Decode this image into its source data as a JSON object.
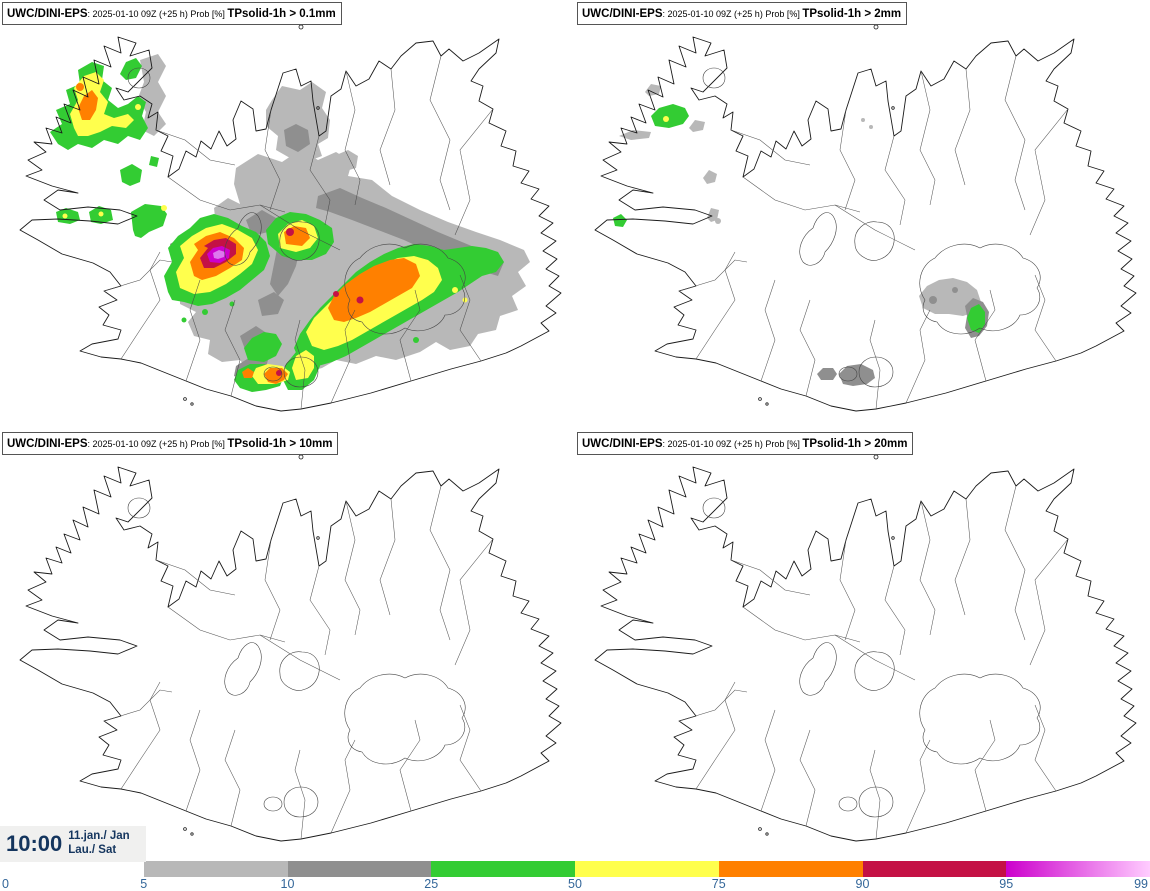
{
  "app": {
    "description": "UWC/DINI-EPS ensemble probability maps of 1-hour solid precipitation over Iceland"
  },
  "panels": [
    {
      "model": "UWC/DINI-EPS",
      "run": ": 2025-01-10 09Z (+25 h) Prob [%] ",
      "threshold": "TPsolid-1h > 0.1mm"
    },
    {
      "model": "UWC/DINI-EPS",
      "run": ": 2025-01-10 09Z (+25 h) Prob [%] ",
      "threshold": "TPsolid-1h > 2mm"
    },
    {
      "model": "UWC/DINI-EPS",
      "run": ": 2025-01-10 09Z (+25 h) Prob [%] ",
      "threshold": "TPsolid-1h > 10mm"
    },
    {
      "model": "UWC/DINI-EPS",
      "run": ": 2025-01-10 09Z (+25 h) Prob [%] ",
      "threshold": "TPsolid-1h > 20mm"
    }
  ],
  "timestamp": {
    "time": "10:00",
    "date_line1": "11.jan./ Jan",
    "date_line2": "Lau./ Sat"
  },
  "legend": {
    "unit": "%",
    "ticks": [
      "0",
      "5",
      "10",
      "25",
      "50",
      "75",
      "90",
      "95",
      "99"
    ],
    "segments": [
      {
        "from": 0,
        "to": 5,
        "color": null
      },
      {
        "from": 5,
        "to": 10,
        "color": "#b8b8b8"
      },
      {
        "from": 10,
        "to": 25,
        "color": "#8f8f8f"
      },
      {
        "from": 25,
        "to": 50,
        "color": "#33cc33"
      },
      {
        "from": 50,
        "to": 75,
        "color": "#ffff4d"
      },
      {
        "from": 75,
        "to": 90,
        "color": "#ff8000"
      },
      {
        "from": 90,
        "to": 95,
        "color": "#c41145"
      },
      {
        "from": 95,
        "to": 99,
        "color_start": "#cc00cc",
        "color_end": "#ffccff"
      }
    ]
  },
  "colors": {
    "light_gray": "#b8b8b8",
    "dark_gray": "#8f8f8f",
    "green": "#33cc33",
    "yellow": "#ffff4d",
    "orange": "#ff8000",
    "red": "#c41145",
    "magenta": "#cc00cc",
    "pink": "#dd77ee",
    "tick_text": "#336699",
    "timestamp_text": "#14355e"
  }
}
